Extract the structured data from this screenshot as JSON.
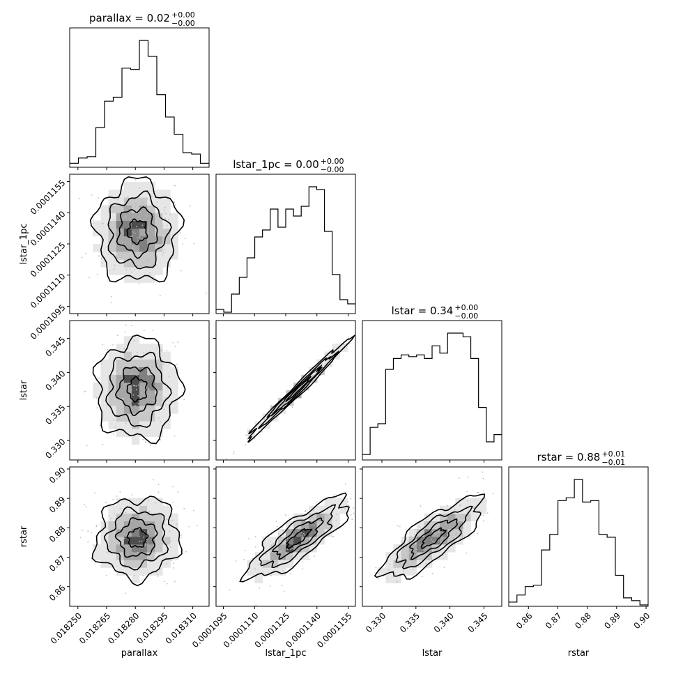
{
  "chart_data": {
    "type": "corner",
    "parameters": [
      "parallax",
      "lstar_1pc",
      "lstar",
      "rstar"
    ],
    "axis_labels": [
      "parallax",
      "lstar_1pc",
      "lstar",
      "rstar"
    ],
    "titles": [
      {
        "param": "parallax",
        "median": "0.02",
        "plus": "+0.00",
        "minus": "−0.00"
      },
      {
        "param": "lstar_1pc",
        "median": "0.00",
        "plus": "+0.00",
        "minus": "−0.00"
      },
      {
        "param": "lstar",
        "median": "0.34",
        "plus": "+0.00",
        "minus": "−0.00"
      },
      {
        "param": "rstar",
        "median": "0.88",
        "plus": "+0.01",
        "minus": "−0.01"
      }
    ],
    "ranges": [
      [
        0.0182457,
        0.0183185
      ],
      [
        0.00010915,
        0.00011585
      ],
      [
        0.32713,
        0.34762
      ],
      [
        0.8533,
        0.9007
      ]
    ],
    "ticks": [
      {
        "values": [
          0.01825,
          0.018265,
          0.01828,
          0.018295,
          0.01831
        ],
        "labels": [
          "0.018250",
          "0.018265",
          "0.018280",
          "0.018295",
          "0.018310"
        ]
      },
      {
        "values": [
          0.0001095,
          0.000111,
          0.0001125,
          0.000114,
          0.0001155
        ],
        "labels": [
          "0.0001095",
          "0.0001110",
          "0.0001125",
          "0.0001140",
          "0.0001155"
        ]
      },
      {
        "values": [
          0.33,
          0.335,
          0.34,
          0.345
        ],
        "labels": [
          "0.330",
          "0.335",
          "0.340",
          "0.345"
        ]
      },
      {
        "values": [
          0.86,
          0.87,
          0.88,
          0.89,
          0.9
        ],
        "labels": [
          "0.86",
          "0.87",
          "0.88",
          "0.89",
          "0.90"
        ]
      }
    ],
    "histograms": [
      {
        "param": "parallax",
        "counts": [
          3,
          7,
          8,
          30,
          50,
          53,
          75,
          74,
          96,
          84,
          55,
          38,
          25,
          11,
          10,
          3
        ]
      },
      {
        "param": "lstar_1pc",
        "counts": [
          3,
          1,
          14,
          26,
          40,
          55,
          60,
          75,
          62,
          75,
          70,
          77,
          91,
          89,
          59,
          28,
          10,
          7
        ]
      },
      {
        "param": "lstar",
        "counts": [
          3,
          18,
          20,
          50,
          56,
          58,
          57,
          58,
          56,
          63,
          59,
          70,
          70,
          68,
          56,
          29,
          10,
          14
        ]
      },
      {
        "param": "rstar",
        "counts": [
          3,
          8,
          14,
          15,
          40,
          51,
          75,
          77,
          90,
          74,
          75,
          51,
          49,
          22,
          6,
          4,
          1
        ]
      }
    ],
    "correlations": [
      {
        "x": "lstar_1pc",
        "y": "parallax",
        "rho": 0.0
      },
      {
        "x": "lstar",
        "y": "parallax",
        "rho": 0.0
      },
      {
        "x": "lstar",
        "y": "lstar_1pc",
        "rho": 0.99
      },
      {
        "x": "rstar",
        "y": "parallax",
        "rho": 0.05
      },
      {
        "x": "rstar",
        "y": "lstar_1pc",
        "rho": 0.82
      },
      {
        "x": "rstar",
        "y": "lstar",
        "rho": 0.8
      }
    ],
    "centers": [
      0.018281,
      0.0001131,
      0.3375,
      0.8765
    ],
    "widths": [
      9.8e-06,
      1.1e-06,
      0.0033,
      0.0062
    ]
  }
}
